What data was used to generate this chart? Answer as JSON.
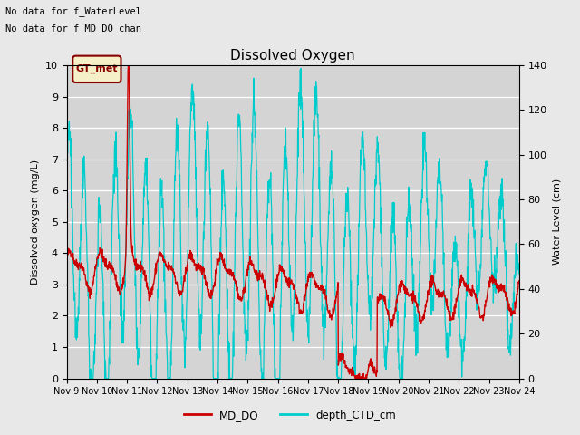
{
  "title": "Dissolved Oxygen",
  "note1": "No data for f_WaterLevel",
  "note2": "No data for f_MD_DO_chan",
  "legend_box_label": "GT_met",
  "ylabel_left": "Dissolved oxygen (mg/L)",
  "ylabel_right": "Water Level (cm)",
  "ylim_left": [
    0.0,
    10.0
  ],
  "ylim_right": [
    0,
    140
  ],
  "yticks_left": [
    0.0,
    1.0,
    2.0,
    3.0,
    4.0,
    5.0,
    6.0,
    7.0,
    8.0,
    9.0,
    10.0
  ],
  "yticks_right": [
    0,
    20,
    40,
    60,
    80,
    100,
    120,
    140
  ],
  "xtick_labels": [
    "Nov 9",
    "Nov 10",
    "Nov 11",
    "Nov 12",
    "Nov 13",
    "Nov 14",
    "Nov 15",
    "Nov 16",
    "Nov 17",
    "Nov 18",
    "Nov 19",
    "Nov 20",
    "Nov 21",
    "Nov 22",
    "Nov 23",
    "Nov 24"
  ],
  "color_MD_DO": "#cc0000",
  "color_depth": "#00cccc",
  "bg_color": "#e8e8e8",
  "plot_bg_color": "#d4d4d4",
  "grid_color": "#ffffff",
  "legend_bg": "#f5f0c8",
  "legend_border": "#880000",
  "legend_label_MD_DO": "MD_DO",
  "legend_label_depth": "depth_CTD_cm"
}
